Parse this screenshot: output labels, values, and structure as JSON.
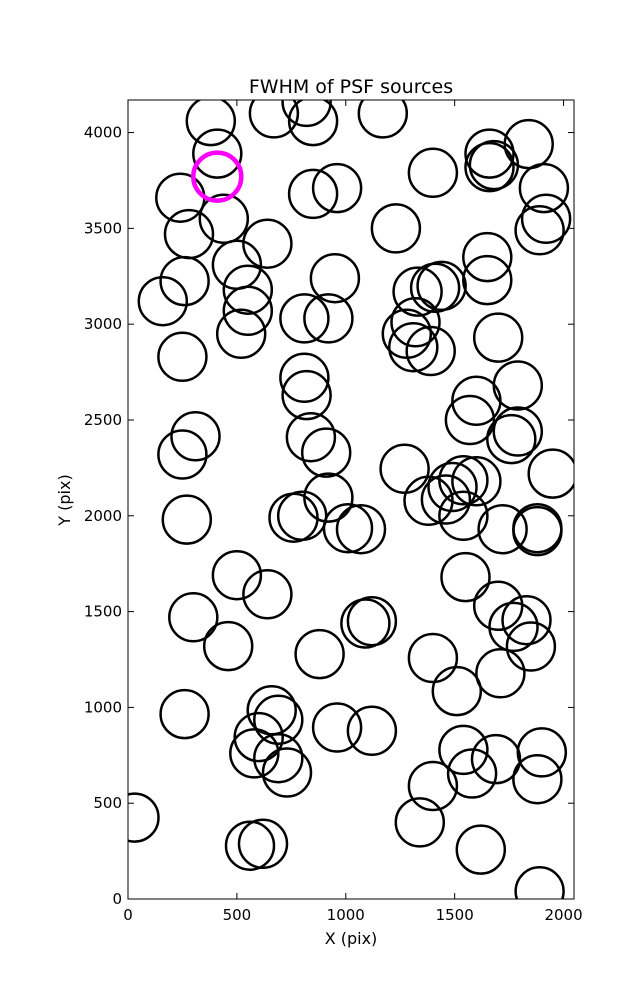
{
  "chart_data": {
    "type": "scatter",
    "title": "FWHM of PSF sources",
    "xlabel": "X (pix)",
    "ylabel": "Y (pix)",
    "xlim": [
      0,
      2048
    ],
    "ylim": [
      0,
      4170
    ],
    "xticks": [
      0,
      500,
      1000,
      1500,
      2000
    ],
    "yticks": [
      0,
      500,
      1000,
      1500,
      2000,
      2500,
      3000,
      3500,
      4000
    ],
    "grid": false,
    "marker": "open-circle",
    "marker_radius": 110,
    "series": [
      {
        "color": "#000000",
        "points": [
          [
            30,
            425
          ],
          [
            560,
            278
          ],
          [
            620,
            288
          ],
          [
            1340,
            400
          ],
          [
            1620,
            258
          ],
          [
            1890,
            40
          ],
          [
            1400,
            590
          ],
          [
            1580,
            655
          ],
          [
            1690,
            730
          ],
          [
            1880,
            625
          ],
          [
            1540,
            778
          ],
          [
            1900,
            765
          ],
          [
            580,
            760
          ],
          [
            600,
            845
          ],
          [
            690,
            735
          ],
          [
            730,
            660
          ],
          [
            660,
            985
          ],
          [
            690,
            935
          ],
          [
            960,
            895
          ],
          [
            1120,
            878
          ],
          [
            1510,
            1085
          ],
          [
            1400,
            1258
          ],
          [
            1710,
            1178
          ],
          [
            260,
            965
          ],
          [
            460,
            1320
          ],
          [
            300,
            1470
          ],
          [
            880,
            1278
          ],
          [
            1090,
            1438
          ],
          [
            1120,
            1450
          ],
          [
            1770,
            1420
          ],
          [
            1830,
            1455
          ],
          [
            1850,
            1318
          ],
          [
            1700,
            1530
          ],
          [
            1550,
            1680
          ],
          [
            500,
            1690
          ],
          [
            640,
            1590
          ],
          [
            270,
            1980
          ],
          [
            760,
            1990
          ],
          [
            800,
            2000
          ],
          [
            920,
            2095
          ],
          [
            1010,
            1935
          ],
          [
            1070,
            1930
          ],
          [
            1270,
            2245
          ],
          [
            1380,
            2078
          ],
          [
            1460,
            2085
          ],
          [
            1490,
            2150
          ],
          [
            1540,
            2000
          ],
          [
            1540,
            2185
          ],
          [
            1600,
            2180
          ],
          [
            1720,
            1930
          ],
          [
            1880,
            1920
          ],
          [
            1880,
            1935
          ],
          [
            1950,
            2220
          ],
          [
            250,
            2320
          ],
          [
            310,
            2415
          ],
          [
            840,
            2410
          ],
          [
            910,
            2330
          ],
          [
            820,
            2630
          ],
          [
            810,
            2720
          ],
          [
            1570,
            2500
          ],
          [
            1600,
            2600
          ],
          [
            1760,
            2400
          ],
          [
            1790,
            2440
          ],
          [
            1790,
            2680
          ],
          [
            250,
            2830
          ],
          [
            160,
            3120
          ],
          [
            260,
            3225
          ],
          [
            520,
            2950
          ],
          [
            550,
            3070
          ],
          [
            550,
            3180
          ],
          [
            500,
            3310
          ],
          [
            640,
            3420
          ],
          [
            810,
            3030
          ],
          [
            920,
            3030
          ],
          [
            950,
            3240
          ],
          [
            1280,
            2950
          ],
          [
            1310,
            2880
          ],
          [
            1320,
            3010
          ],
          [
            1390,
            2860
          ],
          [
            1330,
            3170
          ],
          [
            1410,
            3190
          ],
          [
            1440,
            3200
          ],
          [
            1650,
            3230
          ],
          [
            1650,
            3350
          ],
          [
            1700,
            2930
          ],
          [
            240,
            3660
          ],
          [
            280,
            3470
          ],
          [
            440,
            3550
          ],
          [
            410,
            3890
          ],
          [
            380,
            4060
          ],
          [
            670,
            4100
          ],
          [
            820,
            4160
          ],
          [
            850,
            4060
          ],
          [
            850,
            3680
          ],
          [
            960,
            3710
          ],
          [
            1170,
            4100
          ],
          [
            1230,
            3500
          ],
          [
            1400,
            3790
          ],
          [
            1660,
            3890
          ],
          [
            1660,
            3820
          ],
          [
            1680,
            3830
          ],
          [
            1840,
            3940
          ],
          [
            1910,
            3710
          ],
          [
            1890,
            3490
          ],
          [
            1920,
            3550
          ]
        ]
      },
      {
        "color": "#ff00ff",
        "highlight": true,
        "points": [
          [
            410,
            3770
          ]
        ]
      }
    ]
  }
}
